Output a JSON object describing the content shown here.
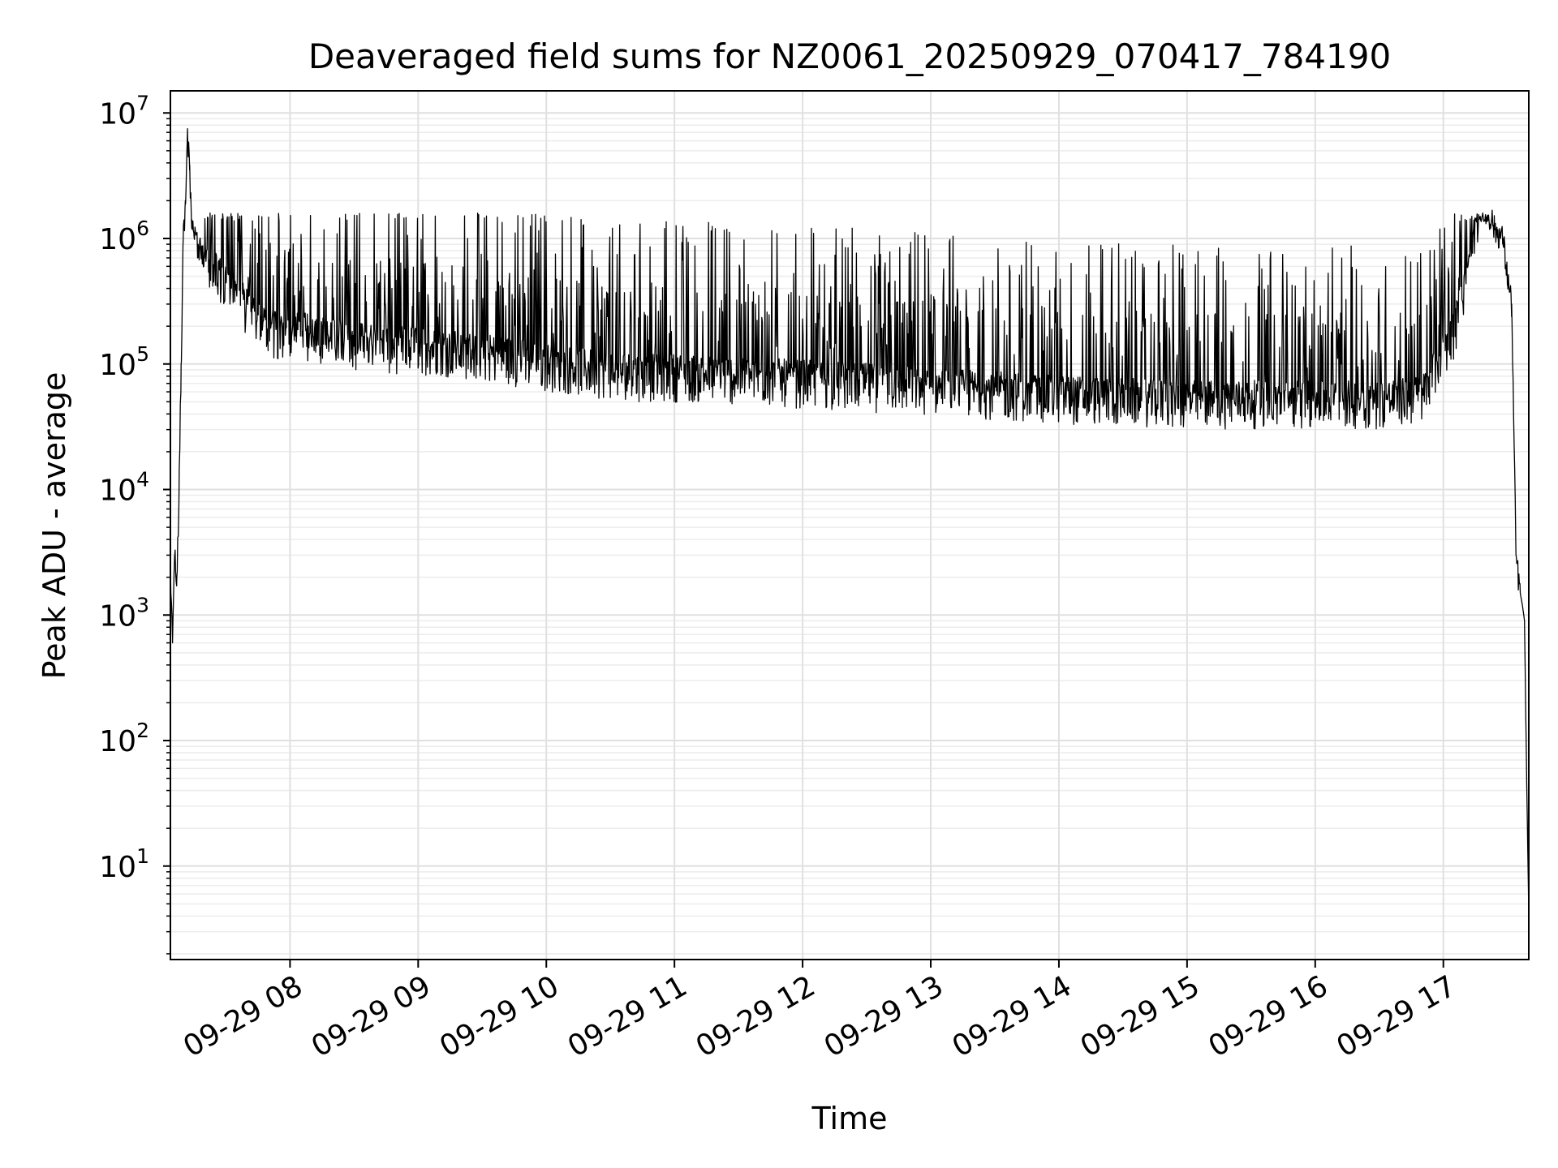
{
  "chart_data": {
    "type": "line",
    "title": "Deaveraged field sums for NZ0061_20250929_070417_784190",
    "xlabel": "Time",
    "ylabel": "Peak ADU - average",
    "yscale": "log",
    "xlim": [
      "2025-09-29 07:04",
      "2025-09-29 17:40"
    ],
    "ylim": [
      1.8,
      15000000
    ],
    "xticks": [
      {
        "label": "09-29 08",
        "t": "2025-09-29 08:00"
      },
      {
        "label": "09-29 09",
        "t": "2025-09-29 09:00"
      },
      {
        "label": "09-29 10",
        "t": "2025-09-29 10:00"
      },
      {
        "label": "09-29 11",
        "t": "2025-09-29 11:00"
      },
      {
        "label": "09-29 12",
        "t": "2025-09-29 12:00"
      },
      {
        "label": "09-29 13",
        "t": "2025-09-29 13:00"
      },
      {
        "label": "09-29 14",
        "t": "2025-09-29 14:00"
      },
      {
        "label": "09-29 15",
        "t": "2025-09-29 15:00"
      },
      {
        "label": "09-29 16",
        "t": "2025-09-29 16:00"
      },
      {
        "label": "09-29 17",
        "t": "2025-09-29 17:00"
      }
    ],
    "yticks": [
      {
        "base": "10",
        "exp": "1",
        "value": 10
      },
      {
        "base": "10",
        "exp": "2",
        "value": 100
      },
      {
        "base": "10",
        "exp": "3",
        "value": 1000
      },
      {
        "base": "10",
        "exp": "4",
        "value": 10000
      },
      {
        "base": "10",
        "exp": "5",
        "value": 100000
      },
      {
        "base": "10",
        "exp": "6",
        "value": 1000000
      },
      {
        "base": "10",
        "exp": "7",
        "value": 10000000
      }
    ],
    "grid": "major and minor",
    "series": [
      {
        "color": "#000000",
        "x": [
          "2025-09-29 07:04",
          "2025-09-29 07:05",
          "2025-09-29 07:06",
          "2025-09-29 07:07",
          "2025-09-29 07:08",
          "2025-09-29 07:09",
          "2025-09-29 07:10",
          "2025-09-29 07:11",
          "2025-09-29 07:12",
          "2025-09-29 07:13",
          "2025-09-29 07:14",
          "2025-09-29 07:15",
          "2025-09-29 07:17",
          "2025-09-29 07:20",
          "2025-09-29 07:25",
          "2025-09-29 07:30",
          "2025-09-29 07:35",
          "2025-09-29 07:40",
          "2025-09-29 07:45",
          "2025-09-29 07:50",
          "2025-09-29 08:00",
          "2025-09-29 08:15",
          "2025-09-29 08:30",
          "2025-09-29 08:45",
          "2025-09-29 09:00",
          "2025-09-29 09:15",
          "2025-09-29 09:30",
          "2025-09-29 09:45",
          "2025-09-29 10:00",
          "2025-09-29 10:15",
          "2025-09-29 10:30",
          "2025-09-29 10:45",
          "2025-09-29 11:00",
          "2025-09-29 11:30",
          "2025-09-29 12:00",
          "2025-09-29 12:30",
          "2025-09-29 13:00",
          "2025-09-29 13:30",
          "2025-09-29 14:00",
          "2025-09-29 14:30",
          "2025-09-29 15:00",
          "2025-09-29 15:30",
          "2025-09-29 16:00",
          "2025-09-29 16:30",
          "2025-09-29 16:50",
          "2025-09-29 17:05",
          "2025-09-29 17:12",
          "2025-09-29 17:18",
          "2025-09-29 17:24",
          "2025-09-29 17:28",
          "2025-09-29 17:30",
          "2025-09-29 17:32",
          "2025-09-29 17:34",
          "2025-09-29 17:36",
          "2025-09-29 17:37",
          "2025-09-29 17:38",
          "2025-09-29 17:39",
          "2025-09-29 17:40"
        ],
        "y": [
          2500,
          600,
          3000,
          2000,
          8000,
          100000,
          1000000,
          2000000,
          7500000,
          3500000,
          1200000,
          1100000,
          900000,
          700000,
          600000,
          500000,
          400000,
          300000,
          250000,
          200000,
          200000,
          180000,
          160000,
          150000,
          150000,
          140000,
          130000,
          120000,
          110000,
          100000,
          95000,
          90000,
          90000,
          85000,
          80000,
          75000,
          70000,
          65000,
          60000,
          58000,
          55000,
          55000,
          55000,
          55000,
          60000,
          200000,
          600000,
          2800000,
          1200000,
          1000000,
          500000,
          300000,
          3000,
          1500,
          1200,
          900,
          50,
          4
        ]
      }
    ]
  }
}
